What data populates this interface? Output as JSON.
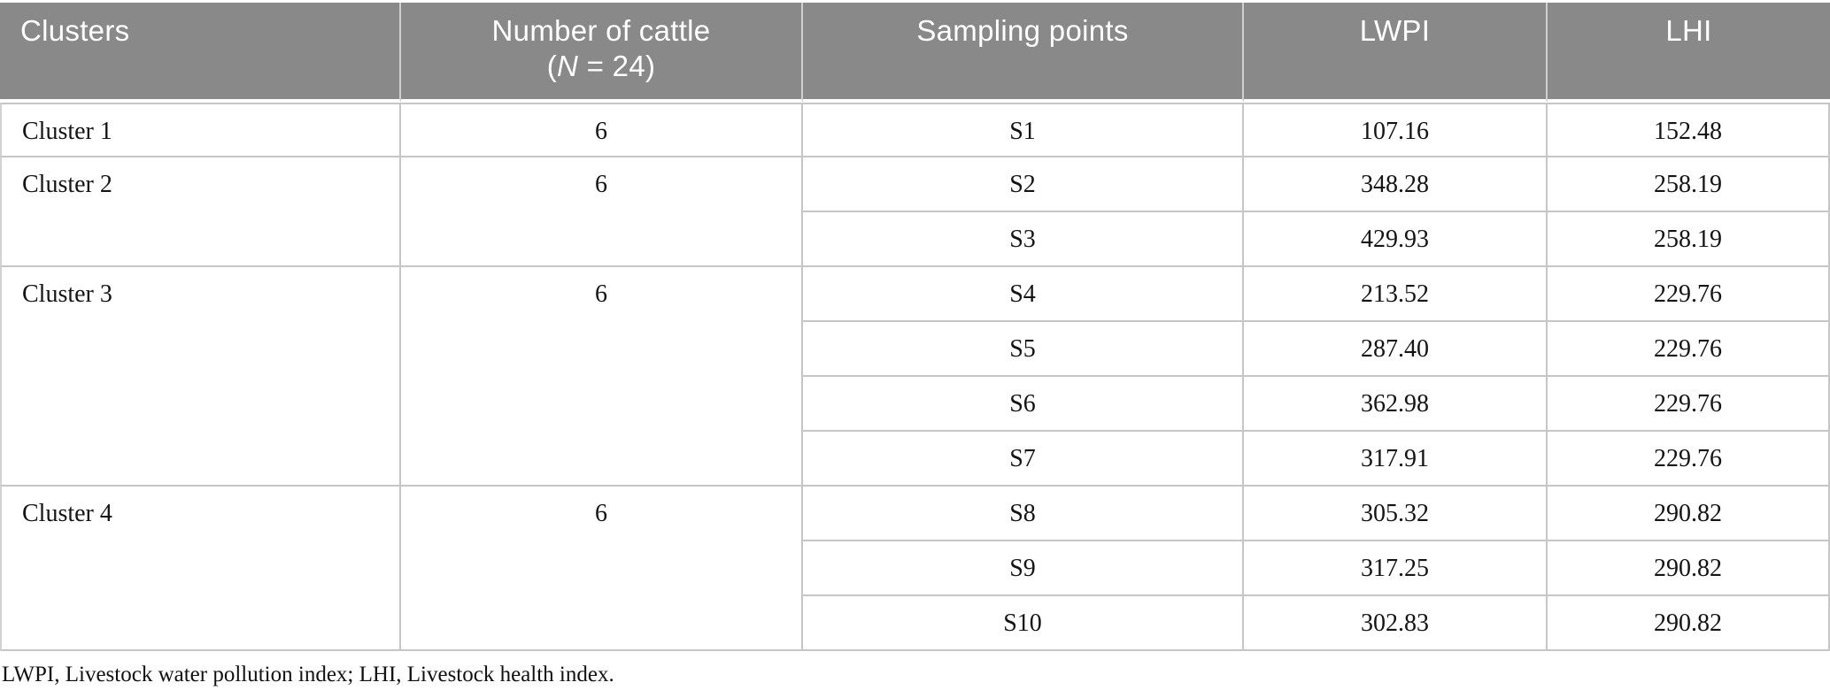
{
  "header": {
    "col_clusters": "Clusters",
    "col_cattle_line1": "Number of cattle",
    "col_cattle_prefix": "(",
    "col_cattle_n": "N",
    "col_cattle_suffix": " = 24)",
    "col_sampling": "Sampling points",
    "col_lwpi": "LWPI",
    "col_lhi": "LHI"
  },
  "groups": [
    {
      "cluster": "Cluster 1",
      "cattle": "6",
      "points": [
        {
          "id": "S1",
          "lwpi": "107.16",
          "lhi": "152.48"
        }
      ]
    },
    {
      "cluster": "Cluster 2",
      "cattle": "6",
      "points": [
        {
          "id": "S2",
          "lwpi": "348.28",
          "lhi": "258.19"
        },
        {
          "id": "S3",
          "lwpi": "429.93",
          "lhi": "258.19"
        }
      ]
    },
    {
      "cluster": "Cluster 3",
      "cattle": "6",
      "points": [
        {
          "id": "S4",
          "lwpi": "213.52",
          "lhi": "229.76"
        },
        {
          "id": "S5",
          "lwpi": "287.40",
          "lhi": "229.76"
        },
        {
          "id": "S6",
          "lwpi": "362.98",
          "lhi": "229.76"
        },
        {
          "id": "S7",
          "lwpi": "317.91",
          "lhi": "229.76"
        }
      ]
    },
    {
      "cluster": "Cluster 4",
      "cattle": "6",
      "points": [
        {
          "id": "S8",
          "lwpi": "305.32",
          "lhi": "290.82"
        },
        {
          "id": "S9",
          "lwpi": "317.25",
          "lhi": "290.82"
        },
        {
          "id": "S10",
          "lwpi": "302.83",
          "lhi": "290.82"
        }
      ]
    }
  ],
  "footnote": "LWPI, Livestock water pollution index; LHI, Livestock health index.",
  "colors": {
    "header_bg": "#898989",
    "header_text": "#ffffff",
    "grid_border": "#c6c6c6",
    "body_text": "#141414"
  }
}
